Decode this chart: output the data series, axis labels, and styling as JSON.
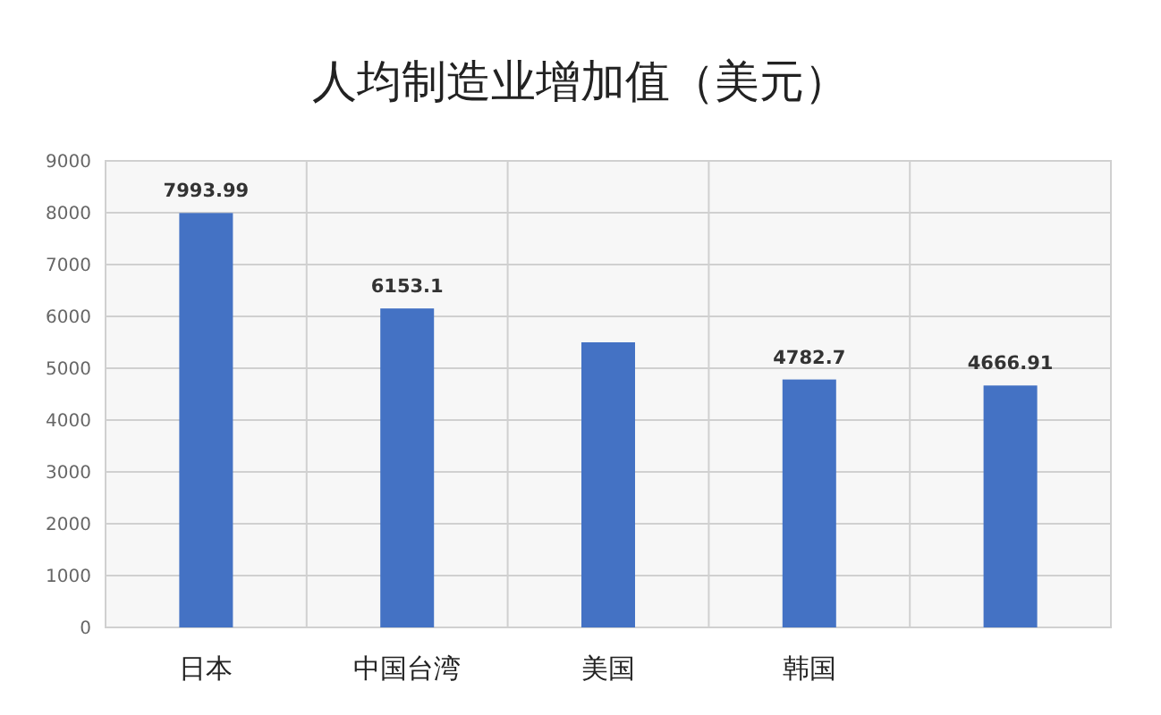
{
  "chart_data": {
    "type": "bar",
    "title": "人均制造业增加值（美元）",
    "categories": [
      "日本",
      "中国台湾",
      "美国",
      "韩国",
      null
    ],
    "values": [
      7993.99,
      6153.1,
      5500,
      4782.7,
      4666.91
    ],
    "value_labels": [
      "7993.99",
      "6153.1",
      null,
      "4782.7",
      "4666.91"
    ],
    "color": "#4472c4",
    "ylim": [
      0,
      9000
    ],
    "yticks": [
      0,
      1000,
      2000,
      3000,
      4000,
      5000,
      6000,
      7000,
      8000,
      9000
    ],
    "grid": true
  }
}
